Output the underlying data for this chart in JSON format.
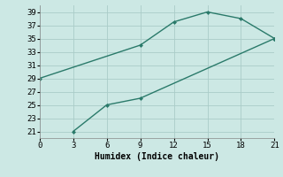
{
  "line1_x": [
    0,
    9,
    12,
    15,
    18,
    21
  ],
  "line1_y": [
    29,
    34,
    37.5,
    39,
    38,
    35
  ],
  "line2_x": [
    3,
    6,
    9,
    21
  ],
  "line2_y": [
    21,
    25,
    26,
    35
  ],
  "line_color": "#2a7a6a",
  "bg_color": "#cce8e4",
  "grid_color": "#aaccc8",
  "xlabel": "Humidex (Indice chaleur)",
  "xlim": [
    0,
    21
  ],
  "ylim": [
    20,
    40
  ],
  "xticks": [
    0,
    3,
    6,
    9,
    12,
    15,
    18,
    21
  ],
  "yticks": [
    21,
    23,
    25,
    27,
    29,
    31,
    33,
    35,
    37,
    39
  ],
  "xlabel_fontsize": 7,
  "tick_fontsize": 6.5
}
